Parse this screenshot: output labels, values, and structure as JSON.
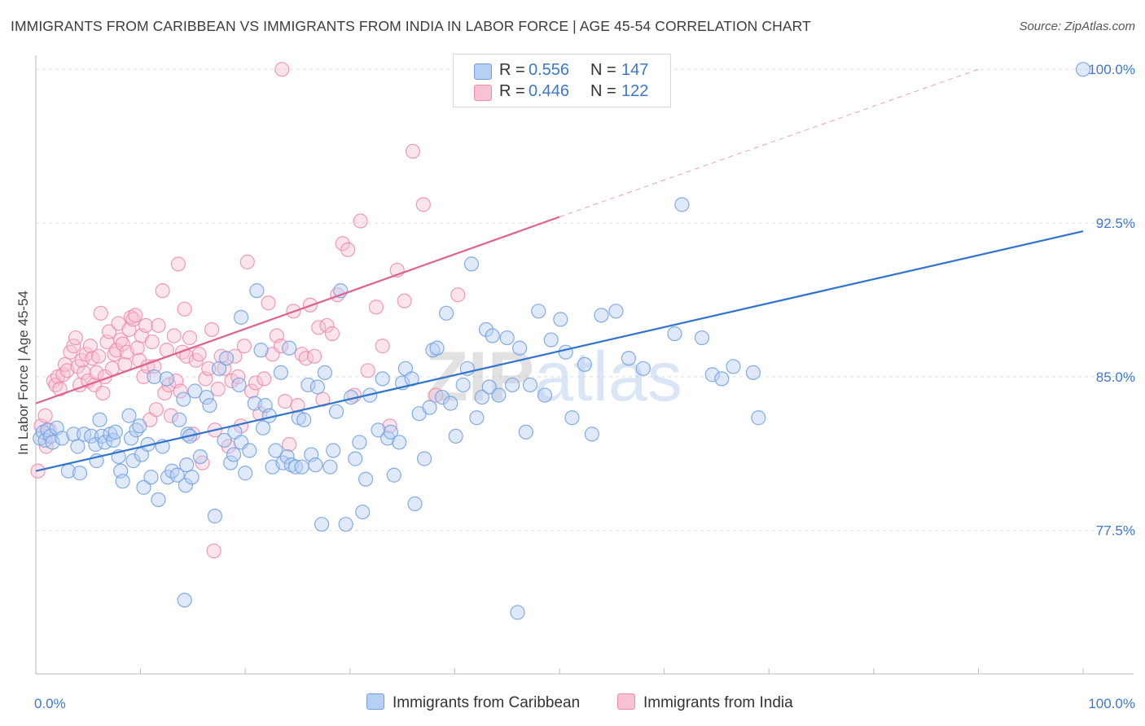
{
  "title": "IMMIGRANTS FROM CARIBBEAN VS IMMIGRANTS FROM INDIA IN LABOR FORCE | AGE 45-54 CORRELATION CHART",
  "source": "Source: ZipAtlas.com",
  "watermark": "ZIPatlas",
  "colors": {
    "blue": "#6f9fe0",
    "blue_line": "#2f74d0",
    "blue_fill": "#b7cff3",
    "pink": "#ef8aa8",
    "pink_line": "#e0628c",
    "pink_fill": "#f7c3d3",
    "tick_text": "#3a78d0",
    "grid": "#dddddd"
  },
  "legend": {
    "rows": [
      {
        "r_label": "R =",
        "r_value": "0.556",
        "n_label": "N =",
        "n_value": "147"
      },
      {
        "r_label": "R =",
        "r_value": "0.446",
        "n_label": "N =",
        "n_value": "122"
      }
    ]
  },
  "bottom_legend": {
    "caribbean": "Immigrants from Caribbean",
    "india": "Immigrants from India"
  },
  "chart_data": {
    "type": "scatter",
    "xlabel": "",
    "ylabel": "In Labor Force | Age 45-54",
    "xlim": [
      0,
      100
    ],
    "ylim": [
      70.5,
      101.0
    ],
    "x_tick_labels": [
      "0.0%",
      "100.0%"
    ],
    "y_ticks": [
      77.5,
      85.0,
      92.5,
      100.0
    ],
    "y_tick_labels": [
      "77.5%",
      "85.0%",
      "92.5%",
      "100.0%"
    ],
    "grid": "horizontal dashed",
    "legend_placement": "top-center",
    "series": [
      {
        "name": "Immigrants from Caribbean",
        "color": "#6f9fe0",
        "r": 0.556,
        "n": 147,
        "trend": {
          "x0": 0,
          "y0": 80.4,
          "x1": 100,
          "y1": 92.1
        },
        "points": [
          [
            0.4,
            82.0
          ],
          [
            0.7,
            82.3
          ],
          [
            0.9,
            81.9
          ],
          [
            1.1,
            82.4
          ],
          [
            1.4,
            82.1
          ],
          [
            1.6,
            81.8
          ],
          [
            2.0,
            82.5
          ],
          [
            2.5,
            82.0
          ],
          [
            3.1,
            80.4
          ],
          [
            3.6,
            82.2
          ],
          [
            4.0,
            81.6
          ],
          [
            4.2,
            80.3
          ],
          [
            4.6,
            82.2
          ],
          [
            5.3,
            82.1
          ],
          [
            5.7,
            81.7
          ],
          [
            5.8,
            80.9
          ],
          [
            6.1,
            82.9
          ],
          [
            6.3,
            82.1
          ],
          [
            6.6,
            81.8
          ],
          [
            7.1,
            82.2
          ],
          [
            7.4,
            81.9
          ],
          [
            7.6,
            82.3
          ],
          [
            7.9,
            81.1
          ],
          [
            8.1,
            80.4
          ],
          [
            8.3,
            79.9
          ],
          [
            8.9,
            83.1
          ],
          [
            9.1,
            82.0
          ],
          [
            9.3,
            80.9
          ],
          [
            9.6,
            82.4
          ],
          [
            9.9,
            82.6
          ],
          [
            10.1,
            81.2
          ],
          [
            10.3,
            79.6
          ],
          [
            10.7,
            81.7
          ],
          [
            11.0,
            80.1
          ],
          [
            11.3,
            85.0
          ],
          [
            11.7,
            79.0
          ],
          [
            12.1,
            81.6
          ],
          [
            12.5,
            84.9
          ],
          [
            12.6,
            80.1
          ],
          [
            13.0,
            80.4
          ],
          [
            13.5,
            80.2
          ],
          [
            13.7,
            82.9
          ],
          [
            14.1,
            83.9
          ],
          [
            14.3,
            79.7
          ],
          [
            14.5,
            82.2
          ],
          [
            14.7,
            82.1
          ],
          [
            14.9,
            80.1
          ],
          [
            15.2,
            84.3
          ],
          [
            15.7,
            81.1
          ],
          [
            16.3,
            84.0
          ],
          [
            16.6,
            83.6
          ],
          [
            14.4,
            80.7
          ],
          [
            17.1,
            78.2
          ],
          [
            17.5,
            85.4
          ],
          [
            18.0,
            81.9
          ],
          [
            18.2,
            85.9
          ],
          [
            18.6,
            80.8
          ],
          [
            18.9,
            81.2
          ],
          [
            19.0,
            82.3
          ],
          [
            19.4,
            84.6
          ],
          [
            19.6,
            81.8
          ],
          [
            19.6,
            87.9
          ],
          [
            20.0,
            80.3
          ],
          [
            20.4,
            81.4
          ],
          [
            20.9,
            83.7
          ],
          [
            21.1,
            89.2
          ],
          [
            21.5,
            86.3
          ],
          [
            21.7,
            82.5
          ],
          [
            21.9,
            83.6
          ],
          [
            22.3,
            83.1
          ],
          [
            22.6,
            80.6
          ],
          [
            22.9,
            81.4
          ],
          [
            23.4,
            85.2
          ],
          [
            23.6,
            80.8
          ],
          [
            24.0,
            81.1
          ],
          [
            24.2,
            86.4
          ],
          [
            24.4,
            80.7
          ],
          [
            24.8,
            80.6
          ],
          [
            25.1,
            83.0
          ],
          [
            25.4,
            80.6
          ],
          [
            25.6,
            82.9
          ],
          [
            26.0,
            84.6
          ],
          [
            26.3,
            81.2
          ],
          [
            26.7,
            80.7
          ],
          [
            26.9,
            84.5
          ],
          [
            27.3,
            77.8
          ],
          [
            27.6,
            85.2
          ],
          [
            28.1,
            80.6
          ],
          [
            28.4,
            81.4
          ],
          [
            28.7,
            83.3
          ],
          [
            29.1,
            89.2
          ],
          [
            29.6,
            77.8
          ],
          [
            30.1,
            84.0
          ],
          [
            30.5,
            81.0
          ],
          [
            30.9,
            81.8
          ],
          [
            31.2,
            78.4
          ],
          [
            31.5,
            80.0
          ],
          [
            31.9,
            84.1
          ],
          [
            32.7,
            82.4
          ],
          [
            33.1,
            84.9
          ],
          [
            33.6,
            82.0
          ],
          [
            33.9,
            82.3
          ],
          [
            34.2,
            80.2
          ],
          [
            34.7,
            81.8
          ],
          [
            35.0,
            84.7
          ],
          [
            35.3,
            85.4
          ],
          [
            35.9,
            84.9
          ],
          [
            36.2,
            78.8
          ],
          [
            36.6,
            83.2
          ],
          [
            37.1,
            81.0
          ],
          [
            37.6,
            83.5
          ],
          [
            37.9,
            86.3
          ],
          [
            38.3,
            86.4
          ],
          [
            38.8,
            84.0
          ],
          [
            39.2,
            88.1
          ],
          [
            39.6,
            83.7
          ],
          [
            40.1,
            82.1
          ],
          [
            40.8,
            84.6
          ],
          [
            41.2,
            85.4
          ],
          [
            41.6,
            90.5
          ],
          [
            42.1,
            83.0
          ],
          [
            42.6,
            84.0
          ],
          [
            43.0,
            87.3
          ],
          [
            43.3,
            84.5
          ],
          [
            43.6,
            87.0
          ],
          [
            44.2,
            84.1
          ],
          [
            45.0,
            86.9
          ],
          [
            45.5,
            84.6
          ],
          [
            46.2,
            86.4
          ],
          [
            46.8,
            82.3
          ],
          [
            47.2,
            84.6
          ],
          [
            48.0,
            88.2
          ],
          [
            48.6,
            84.1
          ],
          [
            49.2,
            86.8
          ],
          [
            50.1,
            87.8
          ],
          [
            50.6,
            86.2
          ],
          [
            51.2,
            83.0
          ],
          [
            52.4,
            85.6
          ],
          [
            53.1,
            82.2
          ],
          [
            54.0,
            88.0
          ],
          [
            55.4,
            88.2
          ],
          [
            56.6,
            85.9
          ],
          [
            58.0,
            85.4
          ],
          [
            61.0,
            87.1
          ],
          [
            61.7,
            93.4
          ],
          [
            63.6,
            86.9
          ],
          [
            64.6,
            85.1
          ],
          [
            65.5,
            84.9
          ],
          [
            66.6,
            85.5
          ],
          [
            68.5,
            85.2
          ],
          [
            69.0,
            83.0
          ],
          [
            100.0,
            100.0
          ],
          [
            14.2,
            74.1
          ],
          [
            46.0,
            73.5
          ]
        ]
      },
      {
        "name": "Immigrants from India",
        "color": "#ef8aa8",
        "r": 0.446,
        "n": 122,
        "trend": {
          "x0": 0,
          "y0": 83.7,
          "x1": 50,
          "y1": 92.8,
          "dash_to_x": 90,
          "dash_to_y": 100.0
        },
        "points": [
          [
            0.5,
            82.6
          ],
          [
            0.9,
            83.1
          ],
          [
            1.0,
            81.6
          ],
          [
            1.3,
            82.4
          ],
          [
            1.7,
            84.8
          ],
          [
            1.9,
            84.6
          ],
          [
            2.1,
            85.0
          ],
          [
            2.3,
            84.4
          ],
          [
            2.6,
            85.1
          ],
          [
            2.8,
            85.6
          ],
          [
            3.0,
            85.3
          ],
          [
            3.3,
            86.2
          ],
          [
            3.6,
            86.5
          ],
          [
            3.8,
            86.9
          ],
          [
            4.0,
            85.5
          ],
          [
            4.2,
            84.6
          ],
          [
            4.4,
            85.8
          ],
          [
            4.6,
            85.2
          ],
          [
            4.8,
            86.1
          ],
          [
            5.0,
            84.8
          ],
          [
            5.2,
            86.5
          ],
          [
            5.4,
            85.9
          ],
          [
            5.6,
            84.6
          ],
          [
            5.8,
            85.2
          ],
          [
            6.0,
            86.0
          ],
          [
            6.2,
            88.1
          ],
          [
            6.4,
            84.2
          ],
          [
            6.6,
            85.0
          ],
          [
            6.8,
            86.7
          ],
          [
            7.0,
            87.2
          ],
          [
            7.3,
            85.4
          ],
          [
            7.5,
            86.1
          ],
          [
            7.7,
            86.3
          ],
          [
            7.9,
            87.6
          ],
          [
            8.1,
            86.8
          ],
          [
            8.3,
            86.6
          ],
          [
            8.5,
            85.6
          ],
          [
            8.7,
            86.2
          ],
          [
            8.9,
            87.3
          ],
          [
            9.1,
            87.9
          ],
          [
            9.3,
            87.8
          ],
          [
            9.5,
            88.0
          ],
          [
            9.7,
            86.4
          ],
          [
            9.9,
            85.8
          ],
          [
            10.1,
            87.0
          ],
          [
            10.3,
            85.0
          ],
          [
            10.5,
            87.5
          ],
          [
            10.7,
            85.5
          ],
          [
            10.9,
            82.9
          ],
          [
            11.1,
            86.7
          ],
          [
            11.3,
            85.5
          ],
          [
            11.5,
            83.4
          ],
          [
            11.7,
            87.5
          ],
          [
            12.1,
            89.2
          ],
          [
            12.3,
            84.2
          ],
          [
            12.5,
            86.3
          ],
          [
            12.7,
            84.6
          ],
          [
            12.9,
            83.1
          ],
          [
            13.2,
            87.0
          ],
          [
            13.4,
            84.8
          ],
          [
            13.6,
            90.5
          ],
          [
            13.8,
            84.3
          ],
          [
            14.0,
            86.2
          ],
          [
            14.2,
            88.3
          ],
          [
            14.4,
            86.0
          ],
          [
            14.7,
            86.9
          ],
          [
            15.0,
            82.2
          ],
          [
            15.3,
            85.8
          ],
          [
            15.6,
            86.1
          ],
          [
            15.9,
            80.8
          ],
          [
            16.2,
            84.9
          ],
          [
            16.5,
            85.4
          ],
          [
            16.8,
            87.3
          ],
          [
            17.1,
            82.4
          ],
          [
            17.4,
            84.4
          ],
          [
            17.7,
            86.0
          ],
          [
            18.0,
            85.4
          ],
          [
            18.4,
            81.6
          ],
          [
            18.7,
            84.8
          ],
          [
            19.0,
            86.0
          ],
          [
            19.3,
            85.0
          ],
          [
            19.6,
            82.6
          ],
          [
            19.9,
            86.5
          ],
          [
            20.2,
            90.6
          ],
          [
            20.6,
            84.3
          ],
          [
            21.0,
            84.7
          ],
          [
            21.4,
            83.2
          ],
          [
            21.8,
            84.9
          ],
          [
            22.2,
            88.6
          ],
          [
            22.6,
            86.1
          ],
          [
            23.0,
            87.0
          ],
          [
            23.4,
            86.5
          ],
          [
            23.8,
            83.8
          ],
          [
            24.2,
            81.7
          ],
          [
            24.6,
            88.2
          ],
          [
            25.0,
            83.6
          ],
          [
            25.4,
            86.1
          ],
          [
            25.8,
            85.9
          ],
          [
            26.2,
            88.5
          ],
          [
            26.6,
            86.0
          ],
          [
            27.0,
            87.4
          ],
          [
            27.4,
            83.9
          ],
          [
            27.8,
            87.5
          ],
          [
            28.3,
            87.1
          ],
          [
            28.8,
            89.0
          ],
          [
            29.3,
            91.5
          ],
          [
            29.8,
            91.2
          ],
          [
            30.4,
            84.1
          ],
          [
            31.0,
            92.6
          ],
          [
            31.7,
            85.3
          ],
          [
            32.5,
            88.4
          ],
          [
            33.1,
            86.5
          ],
          [
            33.8,
            82.6
          ],
          [
            34.5,
            90.2
          ],
          [
            35.2,
            88.7
          ],
          [
            36.0,
            96.0
          ],
          [
            37.0,
            93.4
          ],
          [
            38.2,
            84.1
          ],
          [
            40.3,
            89.0
          ],
          [
            23.5,
            100.0
          ],
          [
            17.0,
            76.5
          ],
          [
            0.2,
            80.4
          ]
        ]
      }
    ]
  }
}
